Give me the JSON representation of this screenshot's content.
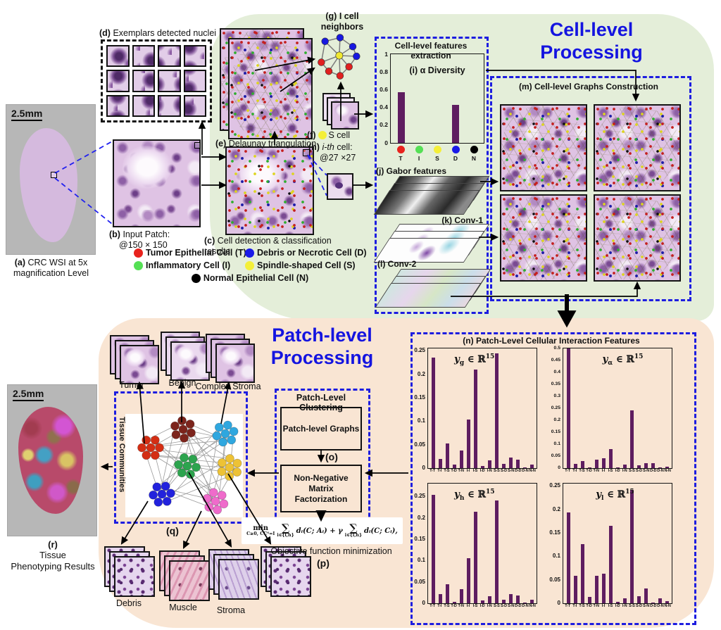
{
  "wsi": {
    "scale": "2.5mm",
    "tag": "(a)",
    "line1": "CRC WSI at 5x",
    "line2": "magnification Level"
  },
  "exemplars": {
    "tag": "(d)",
    "text": "Exemplars detected nuclei"
  },
  "input_patch": {
    "tag": "(b)",
    "line1": "Input Patch:",
    "line2": "@150 × 150"
  },
  "delaunay": {
    "tag": "(e)",
    "text": "Delaunay triangulation"
  },
  "detection": {
    "tag": "(c)",
    "text": "Cell detection & classification results"
  },
  "neighbors": {
    "tag": "(g)",
    "line1": "I cell",
    "line2": "neighbors"
  },
  "s_cell": {
    "tag": "(f)",
    "text": "S cell",
    "color": "#f4ef38"
  },
  "ith_cell": {
    "tag": "(h)",
    "em": "i-th",
    "rest": "cell:",
    "line2": "@27 ×27"
  },
  "legend": {
    "items": [
      {
        "color": "#e8231d",
        "label": "Tumor Epithelial Cell (T)"
      },
      {
        "color": "#1a1ae8",
        "label": "Debris or Necrotic Cell (D)"
      },
      {
        "color": "#55e055",
        "label": "Inflammatory Cell (I)"
      },
      {
        "color": "#f4ef38",
        "label": "Spindle-shaped Cell (S)"
      },
      {
        "color": "#000000",
        "label": "Normal Epithelial Cell (N)"
      }
    ]
  },
  "cell_processing": {
    "title1": "Cell-level",
    "title2": "Processing"
  },
  "patch_processing": {
    "title1": "Patch-level",
    "title2": "Processing"
  },
  "features_box": {
    "title": "Cell-level features extraction",
    "gabor": "(j) Gabor features",
    "conv1": "(k) Conv-1",
    "conv2": "(l) Conv-2"
  },
  "graphs_box": {
    "title": "(m) Cell-level Graphs Construction"
  },
  "interaction_box": {
    "title": "(n) Patch-Level Cellular Interaction Features"
  },
  "clustering": {
    "title": "Patch-Level Clustering",
    "graphs": "Patch-level Graphs",
    "o": "(o)",
    "nmf1": "Non-Negative Matrix",
    "nmf2": "Factorization"
  },
  "formula": {
    "min": "min",
    "constraint": "C≥0, CCᵀ=I",
    "sum": "∑",
    "sub": "i∈{l,h}",
    "term1": "dᵢ(C; Aᵢ) + γ",
    "term2": "dᵢ(C; Cᵢ),",
    "caption": "Objective function minimization",
    "p": "(p)"
  },
  "communities": {
    "side": "Tissue Communities",
    "q": "(q)",
    "top": [
      "Tumor",
      "Benign",
      "Complex Stroma"
    ],
    "bottom": [
      "Debris",
      "Muscle",
      "Stroma"
    ],
    "colors": [
      "#d42e14",
      "#7c241c",
      "#2fa7df",
      "#2ca44e",
      "#edc235",
      "#2222dd",
      "#ef6bcb"
    ]
  },
  "phenotyping": {
    "scale": "2.5mm",
    "tag": "(r)",
    "line1": "Tissue",
    "line2": "Phenotyping Results"
  },
  "chart_data": [
    {
      "id": "alpha_diversity",
      "type": "bar",
      "title": "(i) α Diversity",
      "categories": [
        "T",
        "I",
        "S",
        "D",
        "N"
      ],
      "values": [
        0.57,
        0,
        0,
        0.43,
        0
      ],
      "dot_colors": [
        "#e8231d",
        "#55e055",
        "#f4ef38",
        "#1a1ae8",
        "#000000"
      ],
      "yticks": [
        0,
        0.2,
        0.4,
        0.6,
        0.8,
        1
      ],
      "ytick_labels": [
        "0",
        "0.2",
        "0.4",
        "0.6",
        "0.8",
        "1"
      ],
      "ylim": [
        0,
        1
      ],
      "bar_color": "#5e1d60"
    },
    {
      "id": "y_g",
      "type": "bar",
      "label": {
        "base": "y",
        "sub": "g",
        "rest": "∈ ℝ",
        "sup": "15"
      },
      "categories": [
        "T-T",
        "T-I",
        "T-S",
        "T-D",
        "T-N",
        "I-I",
        "I-S",
        "I-D",
        "I-N",
        "S-S",
        "S-D",
        "S-N",
        "D-D",
        "D-N",
        "N-N"
      ],
      "values": [
        0.235,
        0.02,
        0.053,
        0.008,
        0.037,
        0.104,
        0.21,
        0.005,
        0.016,
        0.245,
        0.009,
        0.022,
        0.018,
        0.002,
        0.008
      ],
      "yticks": [
        0,
        0.05,
        0.1,
        0.15,
        0.2,
        0.25
      ],
      "ytick_labels": [
        "0",
        "0.05",
        "0.1",
        "0.15",
        "0.2",
        "0.25"
      ],
      "ylim": [
        0,
        0.255
      ],
      "bar_color": "#5e1d60"
    },
    {
      "id": "y_alpha",
      "type": "bar",
      "label": {
        "base": "y",
        "sub": "α",
        "rest": "∈ ℝ",
        "sup": "15"
      },
      "categories": [
        "T-T",
        "T-I",
        "T-S",
        "T-D",
        "T-N",
        "I-I",
        "I-S",
        "I-D",
        "I-N",
        "S-S",
        "S-D",
        "S-N",
        "D-D",
        "D-N",
        "N-N"
      ],
      "values": [
        0.5,
        0.018,
        0.028,
        0.004,
        0.035,
        0.042,
        0.08,
        0.003,
        0.016,
        0.24,
        0.012,
        0.02,
        0.02,
        0.003,
        0.007
      ],
      "yticks": [
        0,
        0.05,
        0.1,
        0.15,
        0.2,
        0.25,
        0.3,
        0.35,
        0.4,
        0.45,
        0.5
      ],
      "ytick_labels": [
        "0",
        "0.05",
        "0.1",
        "0.15",
        "0.2",
        "0.25",
        "0.3",
        "0.35",
        "0.4",
        "0.45",
        "0.5"
      ],
      "ylim": [
        0,
        0.5
      ],
      "bar_color": "#5e1d60"
    },
    {
      "id": "y_h",
      "type": "bar",
      "label": {
        "base": "y",
        "sub": "h",
        "rest": "∈ ℝ",
        "sup": "15"
      },
      "categories": [
        "T-T",
        "T-I",
        "T-S",
        "T-D",
        "T-N",
        "I-I",
        "I-S",
        "I-D",
        "I-N",
        "S-S",
        "S-D",
        "S-N",
        "D-D",
        "D-N",
        "N-N"
      ],
      "values": [
        0.253,
        0.021,
        0.044,
        0.004,
        0.033,
        0.105,
        0.214,
        0.006,
        0.016,
        0.24,
        0.009,
        0.022,
        0.018,
        0.002,
        0.009
      ],
      "yticks": [
        0,
        0.05,
        0.1,
        0.15,
        0.2,
        0.25
      ],
      "ytick_labels": [
        "0",
        "0.05",
        "0.1",
        "0.15",
        "0.2",
        "0.25"
      ],
      "ylim": [
        0,
        0.28
      ],
      "bar_color": "#5e1d60"
    },
    {
      "id": "y_l",
      "type": "bar",
      "label": {
        "base": "y",
        "sub": "l",
        "rest": "∈ ℝ",
        "sup": "15"
      },
      "categories": [
        "T-T",
        "T-I",
        "T-S",
        "T-D",
        "T-N",
        "I-I",
        "I-S",
        "I-D",
        "I-N",
        "S-S",
        "S-D",
        "S-N",
        "D-D",
        "D-N",
        "N-N"
      ],
      "values": [
        0.193,
        0.059,
        0.126,
        0.013,
        0.059,
        0.063,
        0.165,
        0.003,
        0.011,
        0.242,
        0.015,
        0.032,
        0.001,
        0.011,
        0.004
      ],
      "yticks": [
        0,
        0.05,
        0.1,
        0.15,
        0.2,
        0.25
      ],
      "ytick_labels": [
        "0",
        "0.05",
        "0.1",
        "0.15",
        "0.2",
        "0.25"
      ],
      "ylim": [
        0,
        0.255
      ],
      "bar_color": "#5e1d60"
    }
  ]
}
